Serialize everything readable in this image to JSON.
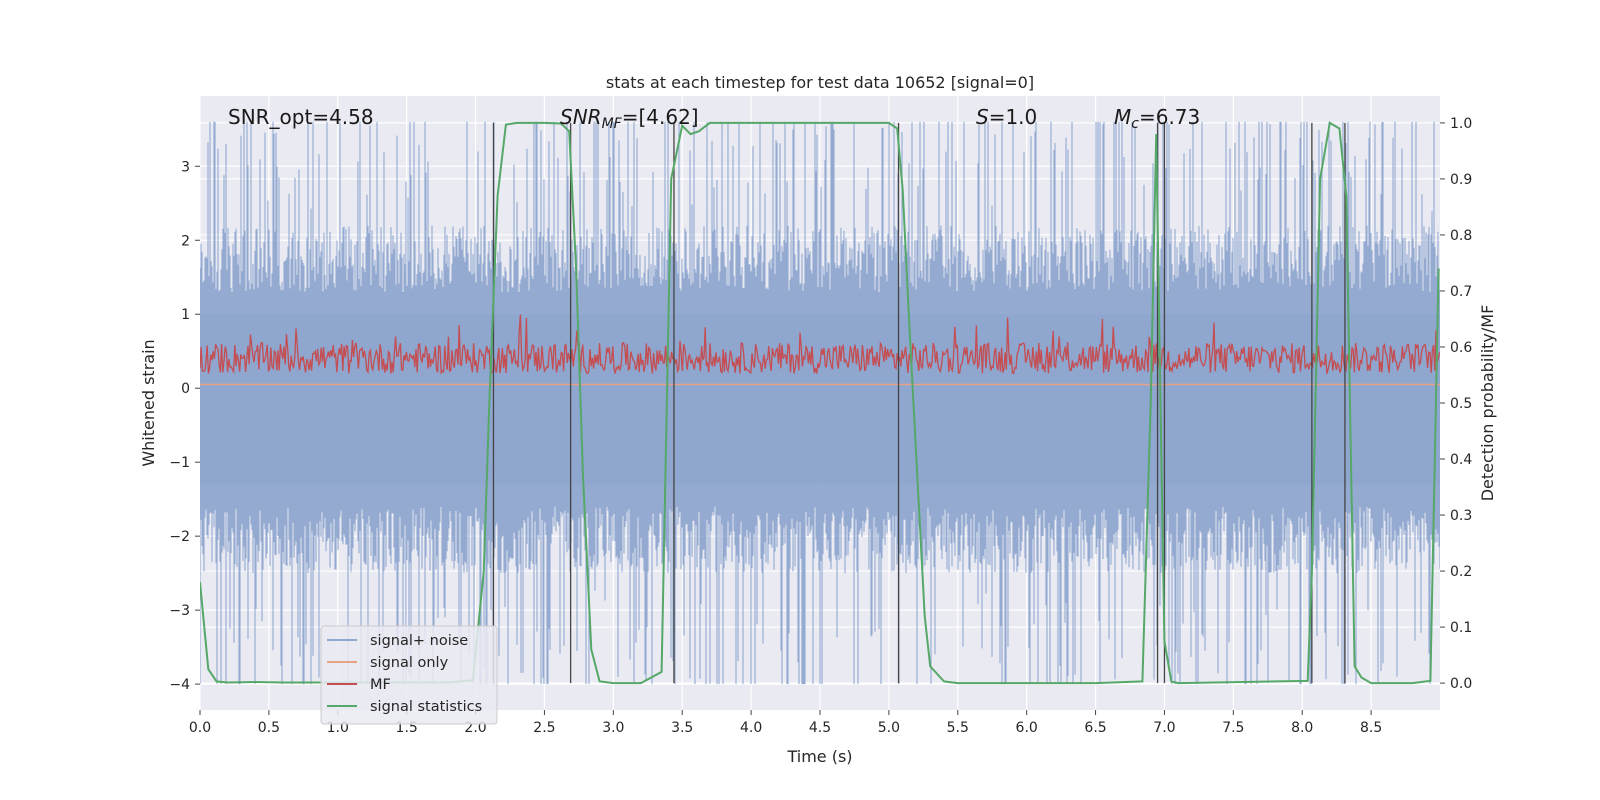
{
  "chart_data": {
    "type": "line",
    "title": "stats at each timestep for test data 10652 [signal=0]",
    "xlabel": "Time (s)",
    "ylabel": "Whitened strain",
    "y2label": "Detection probability/MF",
    "xlim": [
      0.0,
      9.0
    ],
    "ylim": [
      -4.35,
      3.95
    ],
    "y2lim": [
      -0.048,
      1.048
    ],
    "grid": true,
    "legend_position": "lower-left",
    "x_ticks": [
      "0.0",
      "0.5",
      "1.0",
      "1.5",
      "2.0",
      "2.5",
      "3.0",
      "3.5",
      "4.0",
      "4.5",
      "5.0",
      "5.5",
      "6.0",
      "6.5",
      "7.0",
      "7.5",
      "8.0",
      "8.5"
    ],
    "y_ticks": [
      "3",
      "2",
      "1",
      "0",
      "−1",
      "−2",
      "−3",
      "−4"
    ],
    "y2_ticks": [
      "1.0",
      "0.9",
      "0.8",
      "0.7",
      "0.6",
      "0.5",
      "0.4",
      "0.3",
      "0.2",
      "0.1",
      "0.0"
    ],
    "annotations": {
      "snr_opt": "SNR_opt=4.58",
      "snr_mf_sym": "SNR",
      "snr_mf_sub": "MF",
      "snr_mf_val": "=[4.62]",
      "s_sym": "S",
      "s_val": "=1.0",
      "mc_sym": "M",
      "mc_sub": "c",
      "mc_val": "=6.73"
    },
    "series": [
      {
        "name": "signal+ noise",
        "color": "#8fa6cf",
        "style": "dense noise trace, approx range -3.9 to 3.6"
      },
      {
        "name": "signal only",
        "color": "#e8a184",
        "values_constant": 0.05
      },
      {
        "name": "MF",
        "color": "#c44e52",
        "style": "noise trace on right axis, approx 0.53 to 0.63"
      },
      {
        "name": "signal statistics",
        "color": "#55a868",
        "axis": "right",
        "x": [
          0.0,
          0.06,
          0.12,
          0.2,
          0.4,
          0.6,
          0.8,
          1.0,
          1.2,
          1.4,
          1.6,
          1.8,
          1.98,
          2.06,
          2.1,
          2.16,
          2.22,
          2.3,
          2.5,
          2.62,
          2.68,
          2.73,
          2.78,
          2.84,
          2.9,
          3.0,
          3.2,
          3.35,
          3.42,
          3.5,
          3.56,
          3.62,
          3.7,
          3.8,
          4.0,
          4.5,
          5.0,
          5.06,
          5.1,
          5.15,
          5.2,
          5.26,
          5.3,
          5.4,
          5.5,
          6.0,
          6.5,
          6.84,
          6.9,
          6.94,
          6.97,
          7.0,
          7.05,
          7.1,
          8.04,
          8.07,
          8.13,
          8.2,
          8.27,
          8.32,
          8.38,
          8.43,
          8.5,
          8.6,
          8.8,
          8.93,
          8.99
        ],
        "y": [
          0.18,
          0.025,
          0.003,
          0.001,
          0.002,
          0.001,
          0.001,
          0.001,
          0.001,
          0.001,
          0.001,
          0.001,
          0.005,
          0.2,
          0.5,
          0.87,
          0.997,
          1.0,
          1.0,
          0.999,
          0.985,
          0.74,
          0.37,
          0.06,
          0.003,
          0.0,
          0.0,
          0.02,
          0.9,
          0.995,
          0.98,
          0.985,
          1.0,
          1.0,
          1.0,
          1.0,
          1.0,
          0.99,
          0.88,
          0.63,
          0.4,
          0.12,
          0.03,
          0.003,
          0.0,
          0.0,
          0.0,
          0.003,
          0.5,
          0.98,
          0.52,
          0.075,
          0.003,
          0.0,
          0.004,
          0.2,
          0.9,
          1.0,
          0.99,
          0.87,
          0.03,
          0.01,
          0.0,
          0.0,
          0.0,
          0.004,
          0.74
        ]
      }
    ],
    "vertical_lines_x": [
      2.13,
      2.69,
      3.44,
      5.07,
      6.95,
      7.0,
      8.07,
      8.31
    ]
  }
}
